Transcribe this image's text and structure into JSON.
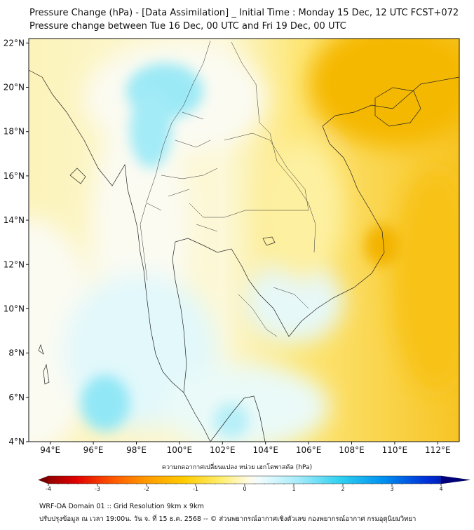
{
  "titles": {
    "line1": "Pressure Change (hPa) - [Data Assimilation] _ Initial Time : Monday 15 Dec, 12 UTC FCST+072",
    "line2": "Pressure change between Tue 16 Dec, 00 UTC and Fri 19 Dec, 00 UTC"
  },
  "map": {
    "lon_range": [
      93,
      113
    ],
    "lat_range": [
      4,
      22.2
    ],
    "lat_ticks": [
      {
        "value": 4,
        "label": "4°N"
      },
      {
        "value": 6,
        "label": "6°N"
      },
      {
        "value": 8,
        "label": "8°N"
      },
      {
        "value": 10,
        "label": "10°N"
      },
      {
        "value": 12,
        "label": "12°N"
      },
      {
        "value": 14,
        "label": "14°N"
      },
      {
        "value": 16,
        "label": "16°N"
      },
      {
        "value": 18,
        "label": "18°N"
      },
      {
        "value": 20,
        "label": "20°N"
      },
      {
        "value": 22,
        "label": "22°N"
      }
    ],
    "lon_ticks": [
      {
        "value": 94,
        "label": "94°E"
      },
      {
        "value": 96,
        "label": "96°E"
      },
      {
        "value": 98,
        "label": "98°E"
      },
      {
        "value": 100,
        "label": "100°E"
      },
      {
        "value": 102,
        "label": "102°E"
      },
      {
        "value": 104,
        "label": "104°E"
      },
      {
        "value": 106,
        "label": "106°E"
      },
      {
        "value": 108,
        "label": "108°E"
      },
      {
        "value": 110,
        "label": "110°E"
      },
      {
        "value": 112,
        "label": "112°E"
      }
    ],
    "field_colors": {
      "deep_fall": "#f5b700",
      "fall": "#fbd736",
      "slight_fall": "#fcf2a8",
      "neutral": "#fbfbf2",
      "slight_rise": "#d8f6fa",
      "rise": "#7fe3f5"
    },
    "coastline_color": "#222222"
  },
  "colorbar": {
    "title": "ความกดอากาศเปลี่ยนแปลง หน่วย เฮกโตพาสคัล (hPa)",
    "range": [
      -4,
      4
    ],
    "ticks": [
      {
        "value": -4,
        "label": "-4"
      },
      {
        "value": -3,
        "label": "-3"
      },
      {
        "value": -2,
        "label": "-2"
      },
      {
        "value": -1,
        "label": "-1"
      },
      {
        "value": 0,
        "label": "0"
      },
      {
        "value": 1,
        "label": "1"
      },
      {
        "value": 2,
        "label": "2"
      },
      {
        "value": 3,
        "label": "3"
      },
      {
        "value": 4,
        "label": "4"
      }
    ],
    "stops": [
      {
        "value": -4,
        "color": "#7a0000"
      },
      {
        "value": -3.3,
        "color": "#e00000"
      },
      {
        "value": -2.6,
        "color": "#ff5a00"
      },
      {
        "value": -2,
        "color": "#ff9a00"
      },
      {
        "value": -1.3,
        "color": "#ffcc00"
      },
      {
        "value": -0.6,
        "color": "#ffee70"
      },
      {
        "value": -0.1,
        "color": "#fffbe6"
      },
      {
        "value": 0.1,
        "color": "#f0fcff"
      },
      {
        "value": 0.8,
        "color": "#a7ecfb"
      },
      {
        "value": 1.6,
        "color": "#2fd0f0"
      },
      {
        "value": 2.4,
        "color": "#0090f0"
      },
      {
        "value": 3.2,
        "color": "#0030d8"
      },
      {
        "value": 4,
        "color": "#00007a"
      }
    ]
  },
  "footer": {
    "line1": "WRF-DA Domain 01 :: Grid Resolution 9km x 9km",
    "line2": "ปรับปรุงข้อมูล ณ เวลา 19:00น. วัน จ. ที่ 15 ธ.ค. 2568 -- © ส่วนพยากรณ์อากาศเชิงตัวเลข กองพยากรณ์อากาศ กรมอุตุนิยมวิทยา"
  }
}
